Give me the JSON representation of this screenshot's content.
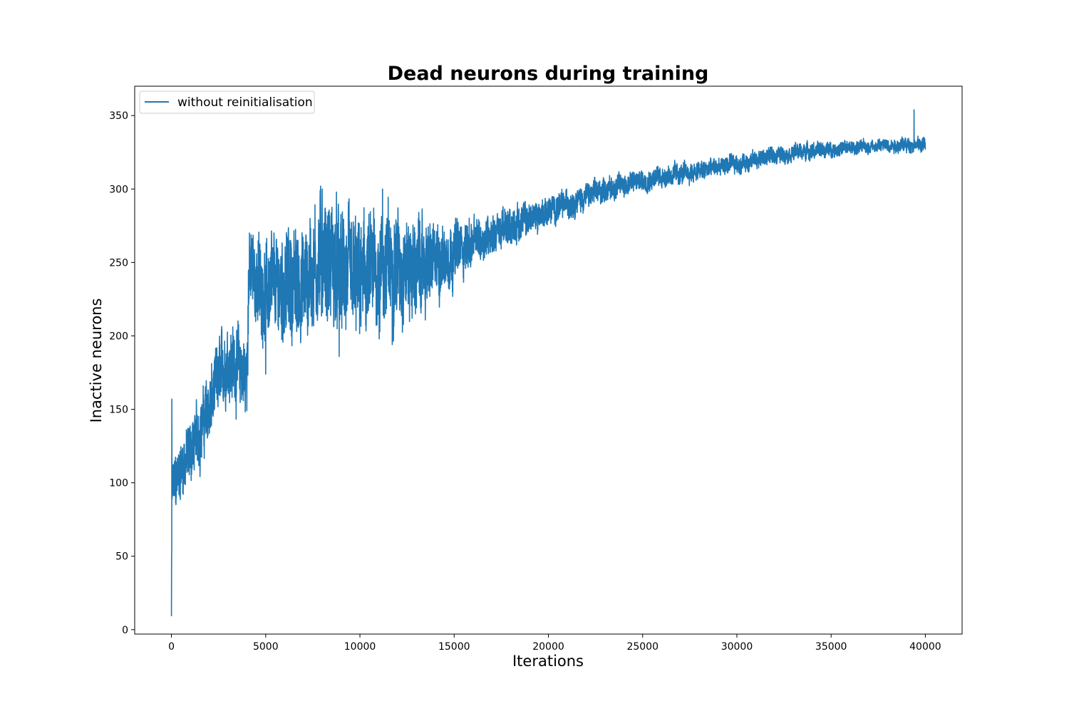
{
  "chart_data": {
    "type": "line",
    "title": "Dead neurons during training",
    "xlabel": "Iterations",
    "ylabel": "Inactive neurons",
    "xlim": [
      -1950,
      41950
    ],
    "ylim": [
      -3,
      370
    ],
    "xticks": [
      0,
      5000,
      10000,
      15000,
      20000,
      25000,
      30000,
      35000,
      40000
    ],
    "yticks": [
      0,
      50,
      100,
      150,
      200,
      250,
      300,
      350
    ],
    "grid": false,
    "legend_position": "upper-left",
    "series": [
      {
        "name": "without reinitialisation",
        "color": "#1f77b4",
        "trend": {
          "x": [
            0,
            40,
            200,
            500,
            1000,
            1500,
            2000,
            2500,
            3000,
            3500,
            4000,
            4100,
            5000,
            6000,
            7000,
            8000,
            9000,
            10000,
            11000,
            12000,
            13000,
            14000,
            15000,
            16000,
            17000,
            18000,
            19000,
            20000,
            21000,
            22000,
            23000,
            24000,
            25000,
            26000,
            27000,
            28000,
            29000,
            30000,
            31000,
            32000,
            33000,
            34000,
            35000,
            36000,
            37000,
            38000,
            39000,
            40000
          ],
          "y": [
            14,
            95,
            98,
            110,
            122,
            135,
            150,
            170,
            185,
            180,
            170,
            245,
            230,
            235,
            235,
            255,
            240,
            235,
            245,
            250,
            245,
            250,
            258,
            263,
            270,
            275,
            280,
            285,
            290,
            295,
            300,
            303,
            306,
            309,
            310,
            312,
            315,
            317,
            320,
            323,
            325,
            326,
            327,
            328,
            329,
            330,
            330,
            330
          ]
        },
        "noise": {
          "x": [
            0,
            4000,
            8000,
            12000,
            16000,
            20000,
            24000,
            28000,
            32000,
            36000,
            40000
          ],
          "amplitude": [
            20,
            28,
            45,
            38,
            16,
            10,
            8,
            7,
            6,
            5,
            5
          ]
        },
        "spikes": [
          {
            "x": 20,
            "y": 157
          },
          {
            "x": 8000,
            "y": 300
          },
          {
            "x": 11200,
            "y": 300
          },
          {
            "x": 8900,
            "y": 186
          },
          {
            "x": 5000,
            "y": 174
          },
          {
            "x": 39400,
            "y": 354
          }
        ]
      }
    ]
  }
}
